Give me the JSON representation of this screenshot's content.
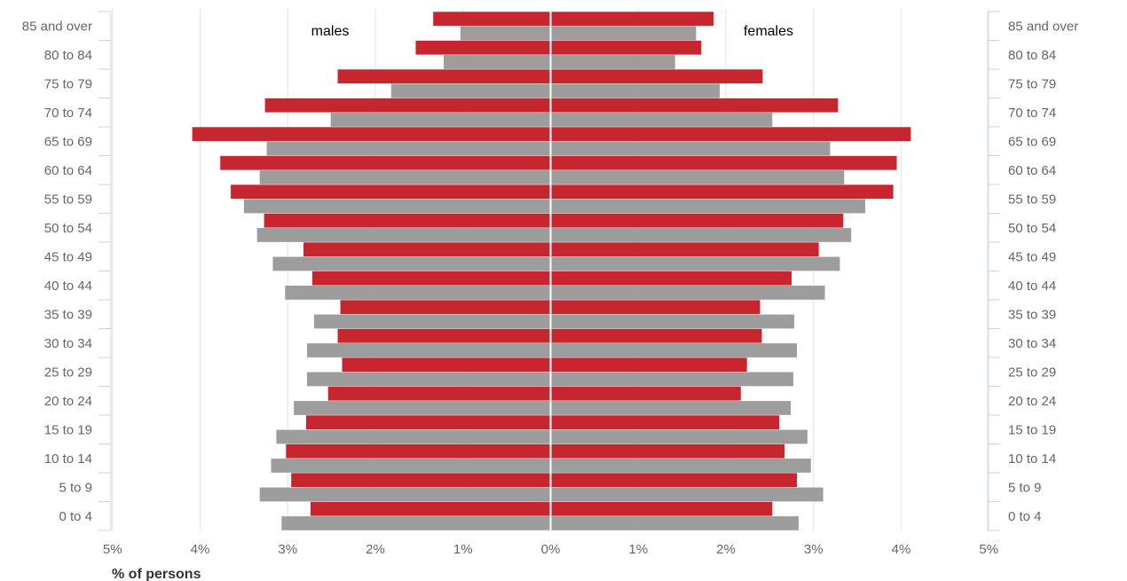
{
  "chart_data": {
    "type": "bar",
    "orientation": "horizontal-population-pyramid",
    "categories": [
      "85 and over",
      "80 to 84",
      "75 to 79",
      "70 to 74",
      "65 to 69",
      "60 to 64",
      "55 to 59",
      "50 to 54",
      "45 to 49",
      "40 to 44",
      "35 to 39",
      "30 to 34",
      "25 to 29",
      "20 to 24",
      "15 to 19",
      "10 to 14",
      "5 to 9",
      "0 to 4"
    ],
    "panel_labels": {
      "left": "males",
      "right": "females"
    },
    "xlabel": "% of persons",
    "xlim": [
      -5,
      5
    ],
    "x_ticks": [
      {
        "value": -5,
        "label": "5%"
      },
      {
        "value": -4,
        "label": "4%"
      },
      {
        "value": -3,
        "label": "3%"
      },
      {
        "value": -2,
        "label": "2%"
      },
      {
        "value": -1,
        "label": "1%"
      },
      {
        "value": 0,
        "label": "0%"
      },
      {
        "value": 1,
        "label": "1%"
      },
      {
        "value": 2,
        "label": "2%"
      },
      {
        "value": 3,
        "label": "3%"
      },
      {
        "value": 4,
        "label": "4%"
      },
      {
        "value": 5,
        "label": "5%"
      }
    ],
    "grid": true,
    "series": [
      {
        "color": "#c8262f",
        "males": [
          1.34,
          1.54,
          2.43,
          3.26,
          4.09,
          3.77,
          3.65,
          3.27,
          2.82,
          2.72,
          2.4,
          2.43,
          2.38,
          2.54,
          2.79,
          3.02,
          2.96,
          2.74
        ],
        "females": [
          1.86,
          1.72,
          2.42,
          3.28,
          4.11,
          3.95,
          3.91,
          3.34,
          3.06,
          2.75,
          2.39,
          2.41,
          2.24,
          2.17,
          2.61,
          2.67,
          2.81,
          2.53
        ]
      },
      {
        "color": "#9d9d9d",
        "males": [
          1.03,
          1.22,
          1.82,
          2.51,
          3.24,
          3.32,
          3.5,
          3.35,
          3.17,
          3.03,
          2.7,
          2.78,
          2.78,
          2.93,
          3.13,
          3.19,
          3.32,
          3.07
        ],
        "females": [
          1.66,
          1.42,
          1.93,
          2.53,
          3.19,
          3.35,
          3.59,
          3.43,
          3.3,
          3.13,
          2.78,
          2.81,
          2.77,
          2.74,
          2.93,
          2.97,
          3.11,
          2.83
        ]
      }
    ],
    "colors": {
      "axis_line": "#c9d3e8",
      "grid_line": "#e4e4ee",
      "label_text": "#666666",
      "title_text": "#000000"
    }
  }
}
